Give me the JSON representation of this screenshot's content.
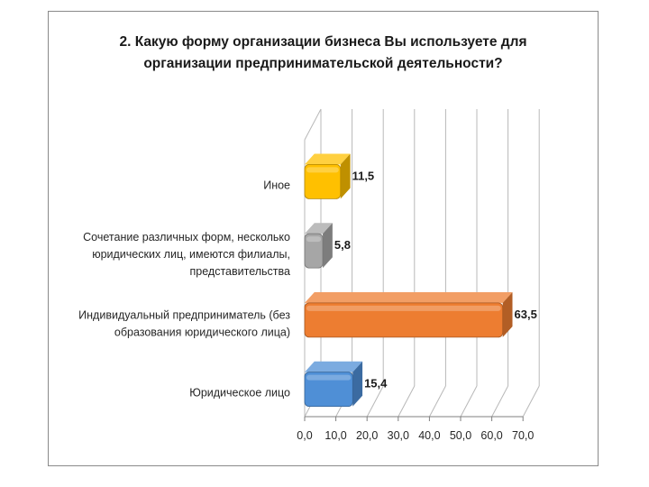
{
  "chart_data": {
    "type": "bar",
    "orientation": "horizontal",
    "three_d": true,
    "title_lines": [
      "2.  Какую форму организации бизнеса Вы используете для",
      "организации предпринимательской деятельности?"
    ],
    "categories": [
      {
        "lines": [
          "Иное"
        ],
        "value": 11.5,
        "label": "11,5",
        "color": "#ffc000"
      },
      {
        "lines": [
          "Сочетание различных форм, несколько",
          "юридических лиц, имеются филиалы,",
          "представительства"
        ],
        "value": 5.8,
        "label": "5,8",
        "color": "#a6a6a6"
      },
      {
        "lines": [
          "Индивидуальный предприниматель (без",
          "образования юридического лица)"
        ],
        "value": 63.5,
        "label": "63,5",
        "color": "#ed7d31"
      },
      {
        "lines": [
          "Юридическое лицо"
        ],
        "value": 15.4,
        "label": "15,4",
        "color": "#4f8fd6"
      }
    ],
    "xlim": [
      0,
      70
    ],
    "ticks": [
      "0,0",
      "10,0",
      "20,0",
      "30,0",
      "40,0",
      "50,0",
      "60,0",
      "70,0"
    ],
    "grid": true,
    "legend": "none"
  }
}
